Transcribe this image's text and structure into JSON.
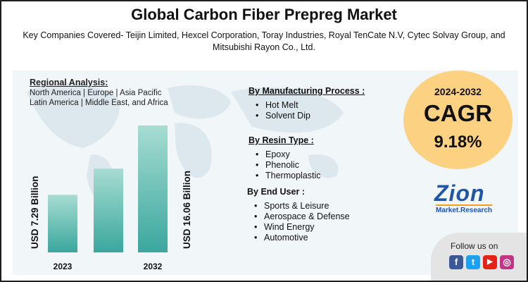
{
  "title": "Global Carbon Fiber Prepreg Market",
  "subtitle": "Key Companies Covered- Teijin Limited, Hexcel Corporation, Toray Industries, Royal TenCate N.V, Cytec Solvay Group, and Mitsubishi Rayon Co., Ltd.",
  "regional": {
    "heading": "Regional Analysis:",
    "line1": "North America | Europe | Asia Pacific",
    "line2": "Latin America | Middle East, and Africa"
  },
  "segments": {
    "process": {
      "heading": "By Manufacturing Process :",
      "items": [
        "Hot Melt",
        "Solvent Dip"
      ]
    },
    "resin": {
      "heading": "By Resin Type :",
      "items": [
        "Epoxy",
        "Phenolic",
        "Thermoplastic"
      ]
    },
    "enduser": {
      "heading": "By End User :",
      "items": [
        "Sports & Leisure",
        "Aerospace & Defense",
        "Wind Energy",
        "Automotive"
      ]
    }
  },
  "cagr": {
    "period": "2024-2032",
    "label": "CAGR",
    "value": "9.18%"
  },
  "logo": {
    "name": "Zion",
    "sub": "Market.Research"
  },
  "follow": {
    "text": "Follow us on",
    "icons": [
      {
        "icon": "facebook-icon",
        "glyph": "f",
        "color": "#3b5998"
      },
      {
        "icon": "twitter-icon",
        "glyph": "t",
        "color": "#1da1f2"
      },
      {
        "icon": "youtube-icon",
        "glyph": "▶",
        "color": "#e62117"
      },
      {
        "icon": "instagram-icon",
        "glyph": "◎",
        "color": "#c13584"
      }
    ]
  },
  "chart_data": {
    "type": "bar",
    "categories": [
      "2023",
      "",
      "2032"
    ],
    "values": [
      7.29,
      10.6,
      16.06
    ],
    "value_labels": [
      "USD 7.29 Billion",
      "",
      "USD 16.06 Billion"
    ],
    "ylim": [
      0,
      16.06
    ],
    "bar_color_top": "#a7dcd2",
    "bar_color_bottom": "#3aa79d"
  }
}
